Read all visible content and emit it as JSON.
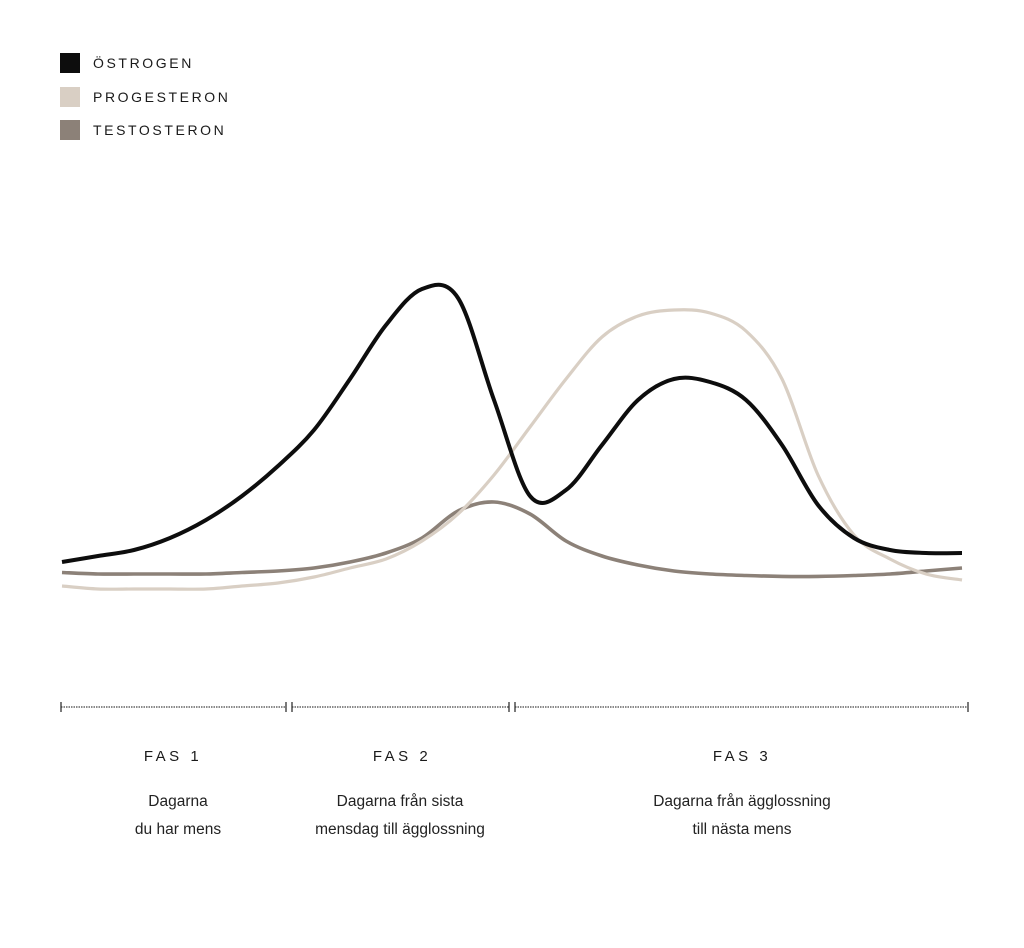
{
  "chart_data": {
    "type": "line",
    "title": "",
    "xlabel": "",
    "ylabel": "",
    "grid": false,
    "legend_position": "top-left",
    "x": [
      0,
      4,
      8,
      12,
      16,
      20,
      24,
      28,
      32,
      36,
      40,
      44,
      48,
      52,
      56,
      60,
      64,
      68,
      72,
      76,
      80,
      84,
      88,
      92,
      96,
      100
    ],
    "series": [
      {
        "name": "ÖSTROGEN",
        "color": "#0d0d0d",
        "values": [
          1,
          3,
          5,
          9,
          15,
          23,
          33,
          45,
          62,
          80,
          92,
          89,
          55,
          23,
          25,
          40,
          55,
          62,
          61,
          55,
          40,
          20,
          9,
          5,
          4,
          4
        ]
      },
      {
        "name": "PROGESTERON",
        "color": "#d9cfc4",
        "values": [
          -7,
          -8,
          -8,
          -8,
          -8,
          -7,
          -6,
          -4,
          -1,
          2,
          8,
          17,
          30,
          46,
          62,
          76,
          83,
          85,
          84,
          78,
          62,
          30,
          10,
          2,
          -3,
          -5
        ]
      },
      {
        "name": "TESTOSTERON",
        "color": "#8c8178",
        "values": [
          -2.5,
          -3,
          -3,
          -3,
          -3,
          -2.5,
          -2,
          -1,
          1,
          4,
          9,
          18,
          21,
          17,
          8,
          3,
          0,
          -2,
          -3,
          -3.5,
          -3.8,
          -3.8,
          -3.5,
          -3,
          -2,
          -1
        ]
      }
    ]
  },
  "legend": {
    "items": [
      {
        "label": "ÖSTROGEN",
        "color": "#0d0d0d"
      },
      {
        "label": "PROGESTERON",
        "color": "#d9cfc4"
      },
      {
        "label": "TESTOSTERON",
        "color": "#8c8178"
      }
    ]
  },
  "phases": [
    {
      "title": "FAS 1",
      "desc_line1": "Dagarna",
      "desc_line2": "du har mens"
    },
    {
      "title": "FAS 2",
      "desc_line1": "Dagarna från sista",
      "desc_line2": "mensdag till ägglossning"
    },
    {
      "title": "FAS 3",
      "desc_line1": "Dagarna från ägglossning",
      "desc_line2": "till nästa mens"
    }
  ]
}
